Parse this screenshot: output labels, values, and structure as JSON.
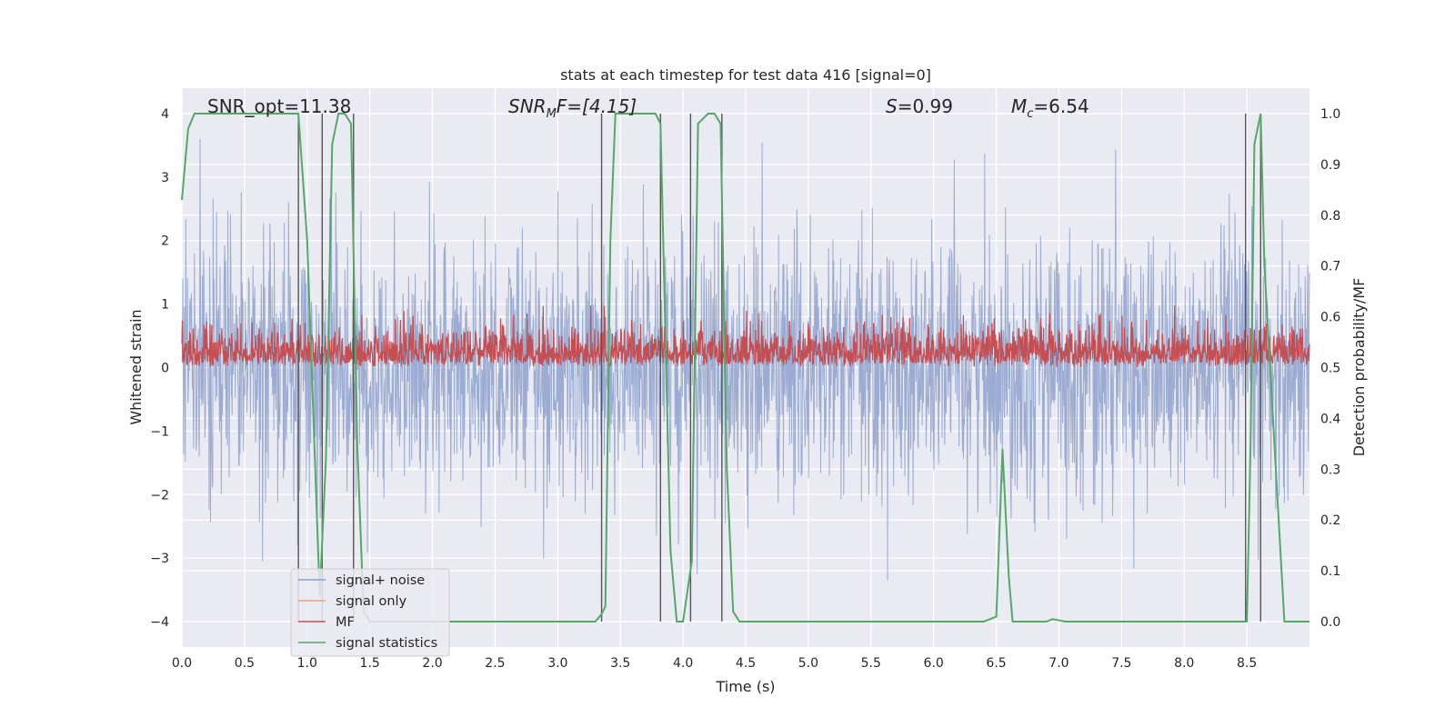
{
  "chart_data": {
    "type": "line",
    "title": "stats at each timestep for test data 416 [signal=0]",
    "xlabel": "Time (s)",
    "ylabel_left": "Whitened strain",
    "ylabel_right": "Detection probability/MF",
    "xlim": [
      0.0,
      9.0
    ],
    "ylim_left": [
      -4.4,
      4.4
    ],
    "ylim_right": [
      -0.05,
      1.05
    ],
    "x_ticks": [
      0.0,
      0.5,
      1.0,
      1.5,
      2.0,
      2.5,
      3.0,
      3.5,
      4.0,
      4.5,
      5.0,
      5.5,
      6.0,
      6.5,
      7.0,
      7.5,
      8.0,
      8.5
    ],
    "x_tick_labels": [
      "0.0",
      "0.5",
      "1.0",
      "1.5",
      "2.0",
      "2.5",
      "3.0",
      "3.5",
      "4.0",
      "4.5",
      "5.0",
      "5.5",
      "6.0",
      "6.5",
      "7.0",
      "7.5",
      "8.0",
      "8.5"
    ],
    "y_left_ticks": [
      4,
      3,
      2,
      1,
      0,
      -1,
      -2,
      -3,
      -4
    ],
    "y_left_tick_labels": [
      "4",
      "3",
      "2",
      "1",
      "0",
      "−1",
      "−2",
      "−3",
      "−4"
    ],
    "y_right_ticks": [
      1.0,
      0.9,
      0.8,
      0.7,
      0.6,
      0.5,
      0.4,
      0.3,
      0.2,
      0.1,
      0.0
    ],
    "y_right_tick_labels": [
      "1.0",
      "0.9",
      "0.8",
      "0.7",
      "0.6",
      "0.5",
      "0.4",
      "0.3",
      "0.2",
      "0.1",
      "0.0"
    ],
    "grid": true,
    "background": "#eaeaf2",
    "annotations": {
      "snr_opt": "SNR_opt=11.38",
      "snr_mf_var": "SNR",
      "snr_mf_sub": "M",
      "snr_mf_rest": "F=[4.15]",
      "s_var": "S",
      "s_rest": "=0.99",
      "mc_var": "M",
      "mc_sub": "c",
      "mc_rest": "=6.54"
    },
    "legend": {
      "placement": "lower-left",
      "entries": [
        {
          "label": "signal+ noise",
          "color": "#8da0cb"
        },
        {
          "label": "signal only",
          "color": "#e8a27c"
        },
        {
          "label": "MF",
          "color": "#c44e52"
        },
        {
          "label": "signal statistics",
          "color": "#55a868"
        }
      ]
    },
    "series": [
      {
        "name": "signal+ noise",
        "color": "#8da0cb",
        "description": "dense noise trace, amplitude mostly within ±2.5, peaks to about ±3.6",
        "amplitude_typical": 2.4,
        "amplitude_max": 3.6
      },
      {
        "name": "signal only",
        "color": "#e8a27c",
        "values": []
      },
      {
        "name": "MF",
        "color": "#c44e52",
        "description": "positive trace between 0 and about 1, centred near 0.3",
        "range": [
          0.0,
          0.98
        ]
      },
      {
        "name": "signal statistics",
        "color": "#55a868",
        "axis": "right",
        "x": [
          0.0,
          0.05,
          0.1,
          0.2,
          0.9,
          0.93,
          1.0,
          1.05,
          1.1,
          1.15,
          1.2,
          1.25,
          1.3,
          1.35,
          1.4,
          1.45,
          1.5,
          3.3,
          3.35,
          3.38,
          3.42,
          3.46,
          3.5,
          3.55,
          3.6,
          3.7,
          3.78,
          3.82,
          3.9,
          3.95,
          4.0,
          4.07,
          4.12,
          4.2,
          4.25,
          4.3,
          4.35,
          4.4,
          4.45,
          4.5,
          6.4,
          6.5,
          6.55,
          6.6,
          6.63,
          6.9,
          6.95,
          7.05,
          8.5,
          8.53,
          8.56,
          8.61,
          8.64,
          8.8,
          9.0
        ],
        "y": [
          0.83,
          0.97,
          1.0,
          1.0,
          1.0,
          1.0,
          0.75,
          0.4,
          0.05,
          0.32,
          0.94,
          1.0,
          1.0,
          0.98,
          0.35,
          0.02,
          0.0,
          0.0,
          0.015,
          0.03,
          0.75,
          1.0,
          1.0,
          1.0,
          1.0,
          1.0,
          1.0,
          0.98,
          0.14,
          0.0,
          0.0,
          0.12,
          0.98,
          1.0,
          1.0,
          0.98,
          0.3,
          0.02,
          0.0,
          0.0,
          0.0,
          0.01,
          0.34,
          0.09,
          0.0,
          0.0,
          0.005,
          0.0,
          0.0,
          0.35,
          0.94,
          1.0,
          0.7,
          0.0,
          0.0
        ]
      }
    ],
    "vertical_markers": {
      "color": "#555555",
      "x": [
        0.93,
        1.12,
        1.37,
        3.35,
        3.82,
        4.06,
        4.31,
        8.49,
        8.61
      ]
    }
  }
}
